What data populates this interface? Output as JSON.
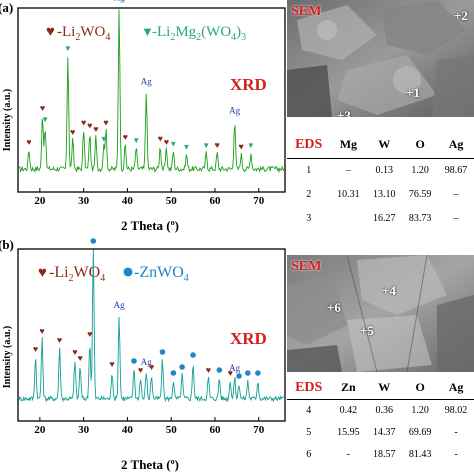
{
  "panel_a": {
    "panel_label": "(a)",
    "legend": [
      "-Li",
      "2",
      "WO",
      "4",
      "-Li",
      "2",
      "Mg",
      "2",
      "(WO",
      "4",
      ")",
      "3"
    ],
    "xrd_label": "XRD",
    "ylabel": "Intensity (a.u.)",
    "xlabel": "2 Theta (",
    "xlabel_deg": "o",
    "xlabel_close": ")",
    "sem_label": "SEM",
    "sem_points": [
      "+1",
      "+2",
      "+3"
    ],
    "eds": {
      "headers": [
        "EDS",
        "Mg",
        "W",
        "O",
        "Ag"
      ],
      "rows": [
        [
          "1",
          "–",
          "0.13",
          "1.20",
          "98.67"
        ],
        [
          "2",
          "10.31",
          "13.10",
          "76.59",
          "–"
        ],
        [
          "3",
          "",
          "16.27",
          "83.73",
          "–"
        ]
      ]
    }
  },
  "panel_b": {
    "panel_label": "(b)",
    "legend": [
      "-Li",
      "2",
      "WO",
      "4",
      "-ZnWO",
      "4"
    ],
    "xrd_label": "XRD",
    "ylabel": "Intensity (a.u.)",
    "xlabel": "2 Theta (",
    "xlabel_deg": "o",
    "xlabel_close": ")",
    "sem_label": "SEM",
    "sem_points": [
      "+4",
      "+6",
      "+5"
    ],
    "eds": {
      "headers": [
        "EDS",
        "Zn",
        "W",
        "O",
        "Ag"
      ],
      "rows": [
        [
          "4",
          "0.42",
          "0.36",
          "1.20",
          "98.02"
        ],
        [
          "5",
          "15.95",
          "14.37",
          "69.69",
          "-"
        ],
        [
          "6",
          "-",
          "18.57",
          "81.43",
          "-"
        ]
      ]
    }
  },
  "colors": {
    "li2wo4": "#8b2a1a",
    "mg_phase": "#2aa77c",
    "znwo4": "#1f87c8",
    "ag": "#1c3aa8",
    "xrd_line_a": "#1aa01a",
    "xrd_line_b": "#12a094",
    "red_text": "#d61e1e"
  },
  "chart_data": [
    {
      "type": "line",
      "xlabel": "2 Theta (o)",
      "ylabel": "Intensity (a.u.)",
      "xlim": [
        15,
        76
      ],
      "x_ticks": [
        20,
        30,
        40,
        50,
        60,
        70
      ],
      "peaks": [
        {
          "x": 17.5,
          "y": 12,
          "phase": "Li2WO4"
        },
        {
          "x": 20.6,
          "y": 33,
          "phase": "Li2WO4"
        },
        {
          "x": 21.2,
          "y": 26,
          "phase": "Li2Mg2(WO4)3"
        },
        {
          "x": 26.4,
          "y": 70,
          "phase": "Li2Mg2(WO4)3"
        },
        {
          "x": 27.5,
          "y": 18,
          "phase": "Li2WO4"
        },
        {
          "x": 30.0,
          "y": 24,
          "phase": "Li2WO4"
        },
        {
          "x": 31.4,
          "y": 22,
          "phase": "Li2WO4"
        },
        {
          "x": 32.8,
          "y": 20,
          "phase": "Li2WO4"
        },
        {
          "x": 34.6,
          "y": 14,
          "phase": "Li2Mg2(WO4)3"
        },
        {
          "x": 35.1,
          "y": 24,
          "phase": "Li2WO4"
        },
        {
          "x": 38.1,
          "y": 100,
          "phase": "Ag"
        },
        {
          "x": 39.5,
          "y": 15,
          "phase": "Li2WO4"
        },
        {
          "x": 42.0,
          "y": 13,
          "phase": "Li2Mg2(WO4)3"
        },
        {
          "x": 44.3,
          "y": 48,
          "phase": "Ag"
        },
        {
          "x": 47.5,
          "y": 14,
          "phase": "Li2WO4"
        },
        {
          "x": 48.9,
          "y": 12,
          "phase": "Li2WO4"
        },
        {
          "x": 50.5,
          "y": 11,
          "phase": "Li2Mg2(WO4)3"
        },
        {
          "x": 53.5,
          "y": 9,
          "phase": "Li2Mg2(WO4)3"
        },
        {
          "x": 58.0,
          "y": 10,
          "phase": "Li2Mg2(WO4)3"
        },
        {
          "x": 60.5,
          "y": 10,
          "phase": "Li2WO4"
        },
        {
          "x": 64.5,
          "y": 30,
          "phase": "Ag"
        },
        {
          "x": 66.0,
          "y": 9,
          "phase": "Li2WO4"
        },
        {
          "x": 68.2,
          "y": 10,
          "phase": "Li2Mg2(WO4)3"
        }
      ],
      "peak_labels": [
        "Ag",
        "Ag",
        "Ag"
      ]
    },
    {
      "type": "line",
      "xlabel": "2 Theta (o)",
      "ylabel": "Intensity (a.u.)",
      "xlim": [
        15,
        76
      ],
      "x_ticks": [
        20,
        30,
        40,
        50,
        60,
        70
      ],
      "peaks": [
        {
          "x": 19.0,
          "y": 28,
          "phase": "Li2WO4"
        },
        {
          "x": 20.5,
          "y": 40,
          "phase": "Li2WO4"
        },
        {
          "x": 24.5,
          "y": 34,
          "phase": "Li2WO4"
        },
        {
          "x": 28.0,
          "y": 26,
          "phase": "Li2WO4"
        },
        {
          "x": 29.2,
          "y": 22,
          "phase": "Li2WO4"
        },
        {
          "x": 31.4,
          "y": 38,
          "phase": "Li2WO4"
        },
        {
          "x": 32.2,
          "y": 100,
          "phase": "ZnWO4"
        },
        {
          "x": 36.5,
          "y": 18,
          "phase": "Li2WO4"
        },
        {
          "x": 38.1,
          "y": 56,
          "phase": "Ag"
        },
        {
          "x": 41.5,
          "y": 20,
          "phase": "ZnWO4"
        },
        {
          "x": 43.0,
          "y": 14,
          "phase": "Li2WO4"
        },
        {
          "x": 44.3,
          "y": 18,
          "phase": "Ag"
        },
        {
          "x": 45.5,
          "y": 16,
          "phase": "Li2WO4"
        },
        {
          "x": 48.0,
          "y": 26,
          "phase": "ZnWO4"
        },
        {
          "x": 50.5,
          "y": 12,
          "phase": "ZnWO4"
        },
        {
          "x": 52.5,
          "y": 16,
          "phase": "ZnWO4"
        },
        {
          "x": 55.0,
          "y": 24,
          "phase": "ZnWO4"
        },
        {
          "x": 58.5,
          "y": 14,
          "phase": "Li2WO4"
        },
        {
          "x": 61.0,
          "y": 14,
          "phase": "ZnWO4"
        },
        {
          "x": 63.5,
          "y": 12,
          "phase": "Li2WO4"
        },
        {
          "x": 64.5,
          "y": 14,
          "phase": "Ag"
        },
        {
          "x": 65.5,
          "y": 10,
          "phase": "ZnWO4"
        },
        {
          "x": 67.5,
          "y": 12,
          "phase": "ZnWO4"
        },
        {
          "x": 69.8,
          "y": 12,
          "phase": "ZnWO4"
        }
      ],
      "peak_labels": [
        "Ag",
        "Ag",
        "Ag"
      ]
    }
  ]
}
